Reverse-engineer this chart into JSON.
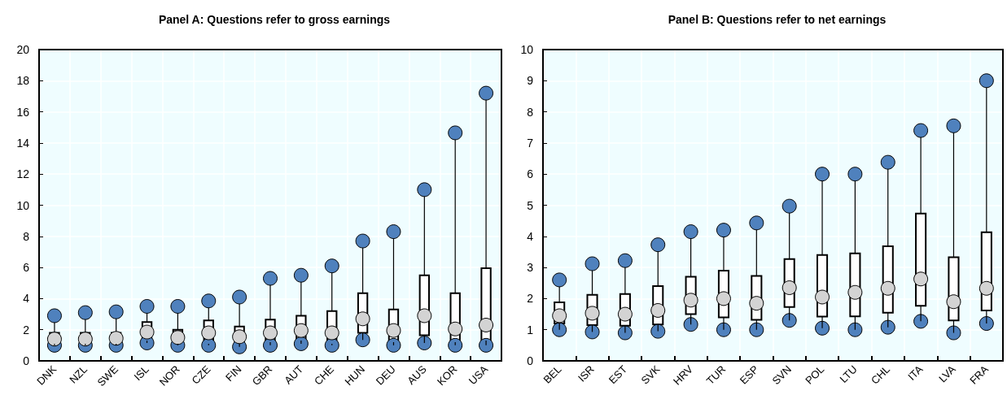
{
  "chart_data": [
    {
      "type": "box",
      "title": "Panel A: Questions refer to gross earnings",
      "categories": [
        "DNK",
        "NZL",
        "SWE",
        "ISL",
        "NOR",
        "CZE",
        "FIN",
        "GBR",
        "AUT",
        "CHE",
        "HUN",
        "DEU",
        "AUS",
        "KOR",
        "USA"
      ],
      "ylim": [
        0,
        20
      ],
      "yticks": [
        0,
        2,
        4,
        6,
        8,
        10,
        12,
        14,
        16,
        18,
        20
      ],
      "grid": true,
      "marker": "circle",
      "series": [
        {
          "type": "scatter",
          "color": "#4f81bd",
          "x": [
            "DNK",
            "NZL",
            "SWE",
            "ISL",
            "NOR",
            "CZE",
            "FIN",
            "GBR",
            "AUT",
            "CHE",
            "HUN",
            "DEU",
            "AUS",
            "KOR",
            "USA",
            "DNK",
            "NZL",
            "SWE",
            "ISL",
            "NOR",
            "CZE",
            "FIN",
            "GBR",
            "AUT",
            "CHE",
            "HUN",
            "DEU",
            "AUS",
            "KOR",
            "USA"
          ],
          "values": [
            1.0,
            1.0,
            1.0,
            1.15,
            1.0,
            1.0,
            0.9,
            1.0,
            1.1,
            1.0,
            1.35,
            1.0,
            1.15,
            1.0,
            1.0,
            2.9,
            3.1,
            3.15,
            3.5,
            3.5,
            3.85,
            4.1,
            5.3,
            5.5,
            6.1,
            7.7,
            8.3,
            11.0,
            14.65,
            17.2
          ]
        },
        {
          "type": "scatter",
          "color": "#d3d3d3",
          "x": [
            "DNK",
            "NZL",
            "SWE",
            "ISL",
            "NOR",
            "CZE",
            "FIN",
            "GBR",
            "AUT",
            "CHE",
            "HUN",
            "DEU",
            "AUS",
            "KOR",
            "USA"
          ],
          "values": [
            1.4,
            1.4,
            1.45,
            1.85,
            1.5,
            1.8,
            1.55,
            1.8,
            1.95,
            1.8,
            2.7,
            1.95,
            2.9,
            2.05,
            2.3
          ]
        },
        {
          "color": "#ffffff",
          "boxes": [
            {
              "low": 1.0,
              "q1": 1.1,
              "median": 1.4,
              "q3": 1.8,
              "high": 2.9
            },
            {
              "low": 1.0,
              "q1": 1.1,
              "median": 1.4,
              "q3": 1.8,
              "high": 3.1
            },
            {
              "low": 1.0,
              "q1": 1.1,
              "median": 1.45,
              "q3": 1.8,
              "high": 3.15
            },
            {
              "low": 1.15,
              "q1": 1.3,
              "median": 1.85,
              "q3": 2.5,
              "high": 3.5
            },
            {
              "low": 1.0,
              "q1": 1.1,
              "median": 1.5,
              "q3": 2.0,
              "high": 3.5
            },
            {
              "low": 1.0,
              "q1": 1.1,
              "median": 1.8,
              "q3": 2.6,
              "high": 3.85
            },
            {
              "low": 0.9,
              "q1": 1.1,
              "median": 1.55,
              "q3": 2.2,
              "high": 4.1
            },
            {
              "low": 1.0,
              "q1": 1.2,
              "median": 1.8,
              "q3": 2.65,
              "high": 5.3
            },
            {
              "low": 1.1,
              "q1": 1.3,
              "median": 1.95,
              "q3": 2.9,
              "high": 5.5
            },
            {
              "low": 1.0,
              "q1": 1.1,
              "median": 1.8,
              "q3": 3.2,
              "high": 6.1
            },
            {
              "low": 1.35,
              "q1": 1.8,
              "median": 2.7,
              "q3": 4.35,
              "high": 7.7
            },
            {
              "low": 1.0,
              "q1": 1.2,
              "median": 1.95,
              "q3": 3.3,
              "high": 8.3
            },
            {
              "low": 1.15,
              "q1": 1.65,
              "median": 2.9,
              "q3": 5.5,
              "high": 11.0
            },
            {
              "low": 1.0,
              "q1": 1.2,
              "median": 2.05,
              "q3": 4.35,
              "high": 14.65
            },
            {
              "low": 1.0,
              "q1": 1.3,
              "median": 2.3,
              "q3": 5.95,
              "high": 17.2
            }
          ]
        }
      ]
    },
    {
      "type": "box",
      "title": "Panel B: Questions refer to net earnings",
      "categories": [
        "BEL",
        "ISR",
        "EST",
        "SVK",
        "HRV",
        "TUR",
        "ESP",
        "SVN",
        "POL",
        "LTU",
        "CHL",
        "ITA",
        "LVA",
        "FRA"
      ],
      "ylim": [
        0,
        10
      ],
      "yticks": [
        0,
        1,
        2,
        3,
        4,
        5,
        6,
        7,
        8,
        9,
        10
      ],
      "grid": true,
      "marker": "circle",
      "series": [
        {
          "type": "scatter",
          "color": "#4f81bd",
          "x": [
            "BEL",
            "ISR",
            "EST",
            "SVK",
            "HRV",
            "TUR",
            "ESP",
            "SVN",
            "POL",
            "LTU",
            "CHL",
            "ITA",
            "LVA",
            "FRA",
            "BEL",
            "ISR",
            "EST",
            "SVK",
            "HRV",
            "TUR",
            "ESP",
            "SVN",
            "POL",
            "LTU",
            "CHL",
            "ITA",
            "LVA",
            "FRA"
          ],
          "values": [
            1.0,
            0.93,
            0.9,
            0.95,
            1.17,
            1.0,
            1.0,
            1.3,
            1.05,
            1.0,
            1.08,
            1.27,
            0.9,
            1.2,
            2.6,
            3.12,
            3.22,
            3.73,
            4.15,
            4.2,
            4.43,
            4.97,
            6.0,
            6.0,
            6.38,
            7.4,
            7.55,
            9.0
          ]
        },
        {
          "type": "scatter",
          "color": "#d3d3d3",
          "x": [
            "BEL",
            "ISR",
            "EST",
            "SVK",
            "HRV",
            "TUR",
            "ESP",
            "SVN",
            "POL",
            "LTU",
            "CHL",
            "ITA",
            "LVA",
            "FRA"
          ],
          "values": [
            1.45,
            1.53,
            1.5,
            1.62,
            1.95,
            2.0,
            1.85,
            2.35,
            2.05,
            2.2,
            2.33,
            2.63,
            1.9,
            2.33
          ]
        },
        {
          "color": "#ffffff",
          "boxes": [
            {
              "low": 1.0,
              "q1": 1.2,
              "median": 1.45,
              "q3": 1.88,
              "high": 2.6
            },
            {
              "low": 0.93,
              "q1": 1.15,
              "median": 1.53,
              "q3": 2.12,
              "high": 3.12
            },
            {
              "low": 0.9,
              "q1": 1.13,
              "median": 1.5,
              "q3": 2.15,
              "high": 3.22
            },
            {
              "low": 0.95,
              "q1": 1.17,
              "median": 1.62,
              "q3": 2.4,
              "high": 3.73
            },
            {
              "low": 1.17,
              "q1": 1.5,
              "median": 1.95,
              "q3": 2.7,
              "high": 4.15
            },
            {
              "low": 1.0,
              "q1": 1.4,
              "median": 2.0,
              "q3": 2.9,
              "high": 4.2
            },
            {
              "low": 1.0,
              "q1": 1.32,
              "median": 1.85,
              "q3": 2.73,
              "high": 4.43
            },
            {
              "low": 1.3,
              "q1": 1.73,
              "median": 2.35,
              "q3": 3.27,
              "high": 4.97
            },
            {
              "low": 1.05,
              "q1": 1.42,
              "median": 2.05,
              "q3": 3.4,
              "high": 6.0
            },
            {
              "low": 1.0,
              "q1": 1.43,
              "median": 2.2,
              "q3": 3.45,
              "high": 6.0
            },
            {
              "low": 1.08,
              "q1": 1.55,
              "median": 2.33,
              "q3": 3.68,
              "high": 6.38
            },
            {
              "low": 1.27,
              "q1": 1.77,
              "median": 2.63,
              "q3": 4.73,
              "high": 7.4
            },
            {
              "low": 0.9,
              "q1": 1.3,
              "median": 1.9,
              "q3": 3.33,
              "high": 7.55
            },
            {
              "low": 1.2,
              "q1": 1.62,
              "median": 2.33,
              "q3": 4.13,
              "high": 9.0
            }
          ]
        }
      ]
    }
  ]
}
